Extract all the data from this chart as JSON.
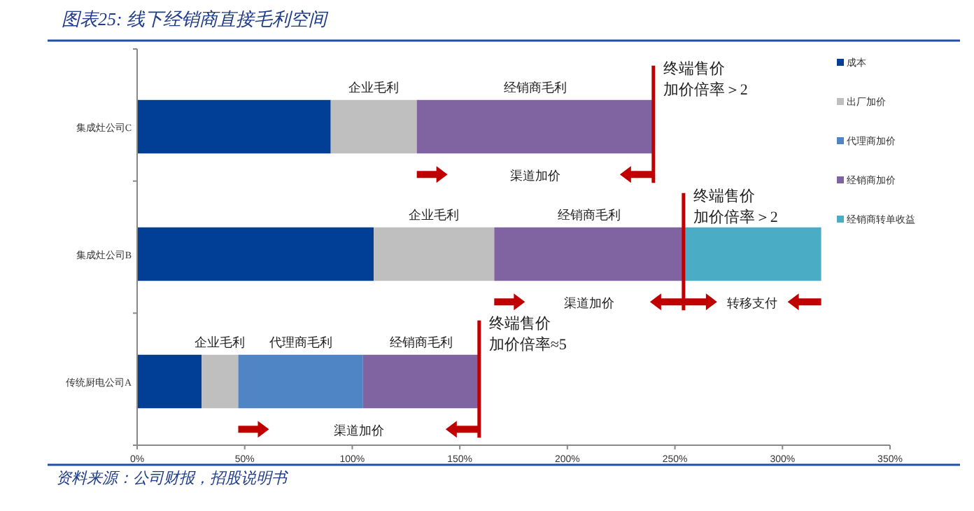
{
  "chart_data": {
    "type": "bar",
    "orientation": "horizontal",
    "stacked": true,
    "title": "图表25: 线下经销商直接毛利空间",
    "categories": [
      "集成灶公司C",
      "集成灶公司B",
      "传统厨电公司A"
    ],
    "series": [
      {
        "name": "成本",
        "color": "#003f95",
        "values": [
          90,
          110,
          30
        ]
      },
      {
        "name": "出厂加价",
        "color": "#bfbfbf",
        "values": [
          40,
          56,
          17
        ]
      },
      {
        "name": "代理商加价",
        "color": "#5085c5",
        "values": [
          null,
          null,
          58
        ]
      },
      {
        "name": "经销商加价",
        "color": "#8064a2",
        "values": [
          110,
          88,
          54
        ]
      },
      {
        "name": "经销商转单收益",
        "color": "#4bacc6",
        "values": [
          null,
          64,
          null
        ]
      }
    ],
    "xlim": [
      0,
      350
    ],
    "xticks": [
      {
        "value": 0,
        "label": "0%"
      },
      {
        "value": 50,
        "label": "50%"
      },
      {
        "value": 100,
        "label": "100%"
      },
      {
        "value": 150,
        "label": "150%"
      },
      {
        "value": 200,
        "label": "200%"
      },
      {
        "value": 250,
        "label": "250%"
      },
      {
        "value": 300,
        "label": "300%"
      },
      {
        "value": 350,
        "label": "350%"
      }
    ],
    "legend": "right",
    "annotations": [
      "企业毛利",
      "经销商毛利",
      "渠道加价",
      "终端售价",
      "加价倍率＞2",
      "企业毛利",
      "经销商毛利",
      "渠道加价",
      "转移支付",
      "终端售价",
      "加价倍率＞2",
      "企业毛利",
      "代理商毛利",
      "经销商毛利",
      "渠道加价",
      "终端售价",
      "加价倍率≈5",
      "资料来源：公司财报，招股说明书"
    ]
  }
}
